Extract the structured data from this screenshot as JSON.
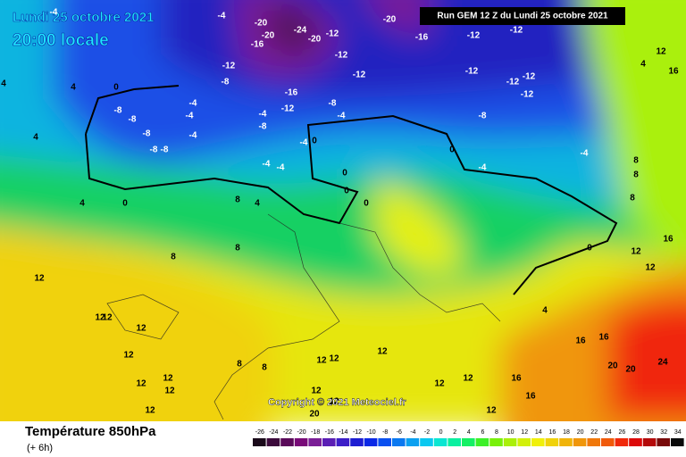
{
  "header": {
    "date": "Lundi 25 octobre 2021",
    "time": "20:00 locale",
    "run": "Run GEM 12 Z du Lundi 25 octobre 2021"
  },
  "footer": {
    "title": "Température 850hPa",
    "subtitle": "(+ 6h)",
    "copyright": "Copyright © 2021 Meteociel.fr"
  },
  "scale": {
    "ticks": [
      -26,
      -24,
      -22,
      -20,
      -18,
      -16,
      -14,
      -12,
      -10,
      -8,
      -6,
      -4,
      -2,
      0,
      2,
      4,
      6,
      8,
      10,
      12,
      14,
      16,
      18,
      20,
      22,
      24,
      26,
      28,
      30,
      32,
      34
    ],
    "colors": [
      "#1a0a1a",
      "#3c0a3c",
      "#5a0a5a",
      "#780a78",
      "#7a1e96",
      "#5a1eb4",
      "#3c1ec8",
      "#1e1ed2",
      "#0a28e6",
      "#0a50f0",
      "#0a78f0",
      "#0aa0f0",
      "#0ac8f0",
      "#0ae6d2",
      "#0af0a0",
      "#14f064",
      "#3cf028",
      "#78f00a",
      "#aaf00a",
      "#d2f00a",
      "#f0f00a",
      "#f0d20a",
      "#f0b40a",
      "#f0960a",
      "#f0780a",
      "#f05a0a",
      "#f0280a",
      "#dc0a0a",
      "#b40a0a",
      "#780a0a",
      "#0a0a0a"
    ]
  },
  "contour_labels": [
    -20,
    -24,
    -20,
    -20,
    -12,
    -16,
    -12,
    -8,
    -16,
    -12,
    -8,
    -12,
    -12,
    -20,
    -16,
    -12,
    -12,
    -12,
    -12,
    -12,
    -12,
    -8,
    -4,
    -4,
    0,
    0,
    0,
    0,
    0,
    -4,
    -4,
    -8,
    -4,
    -4,
    -4,
    0,
    -4,
    -4,
    0,
    4,
    -8,
    -8,
    -8,
    -8,
    -8,
    -4,
    -4,
    -4,
    4,
    4,
    0,
    8,
    4,
    8,
    8,
    12,
    12,
    12,
    12,
    12,
    12,
    12,
    12,
    12,
    8,
    8,
    12,
    12,
    12,
    12,
    12,
    12,
    12,
    16,
    16,
    16,
    16,
    20,
    20,
    24,
    12,
    20,
    4,
    8,
    8,
    8,
    12,
    12,
    16,
    4,
    12,
    16,
    4
  ]
}
